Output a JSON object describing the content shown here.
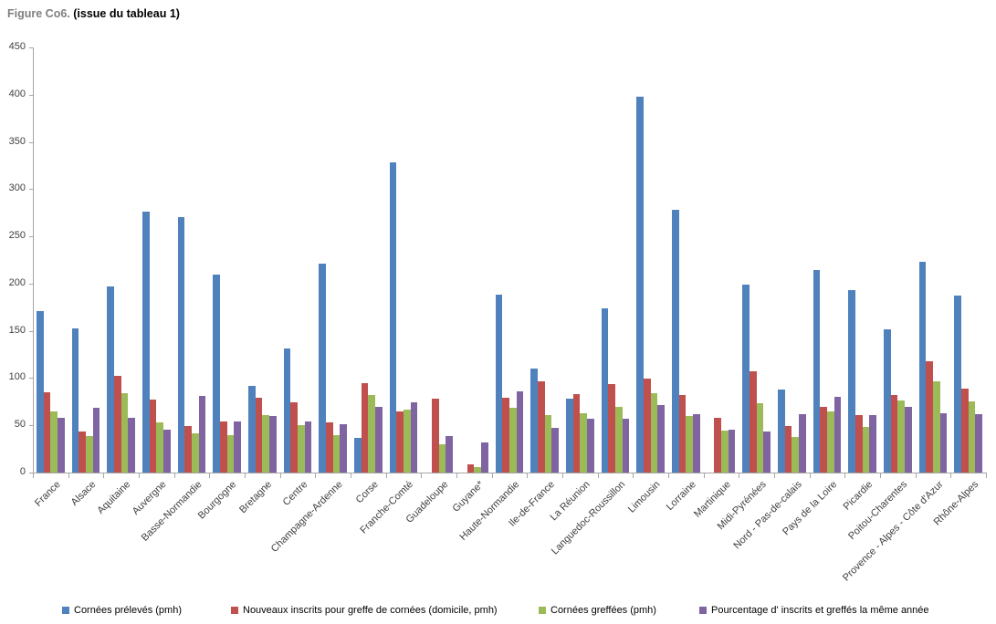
{
  "title": {
    "prefix": "Figure Co6.",
    "suffix": " (issue du tableau 1)"
  },
  "colors": {
    "series_blue": "#4F81BD",
    "series_red": "#C0504D",
    "series_green": "#9BBB59",
    "series_purple": "#8064A2",
    "axis": "#A6A6A6",
    "tick_text": "#404040",
    "title_gray": "#7F7F7F"
  },
  "chart_data": {
    "type": "bar",
    "title": "Figure Co6. (issue du tableau 1)",
    "xlabel": "",
    "ylabel": "",
    "ylim": [
      0,
      450
    ],
    "ytick_step": 50,
    "yticks": [
      0,
      50,
      100,
      150,
      200,
      250,
      300,
      350,
      400,
      450
    ],
    "grid": false,
    "legend_position": "bottom",
    "categories": [
      "France",
      "Alsace",
      "Aquitaine",
      "Auvergne",
      "Basse-Normandie",
      "Bourgogne",
      "Bretagne",
      "Centre",
      "Champagne-Ardenne",
      "Corse",
      "Franche-Comté",
      "Guadeloupe",
      "Guyane*",
      "Haute-Normandie",
      "Ile-de-France",
      "La Réunion",
      "Languedoc-Roussillon",
      "Limousin",
      "Lorraine",
      "Martinique",
      "Midi-Pyrénées",
      "Nord - Pas-de-calais",
      "Pays de la Loire",
      "Picardie",
      "Poitou-Charentes",
      "Provence - Alpes - Côte d'Azur",
      "Rhône-Alpes"
    ],
    "series": [
      {
        "name": "Cornées prélevés (pmh)",
        "color": "#4F81BD",
        "values": [
          171,
          153,
          197,
          276,
          270,
          210,
          92,
          131,
          221,
          37,
          328,
          0,
          0,
          188,
          110,
          78,
          174,
          398,
          278,
          0,
          199,
          88,
          214,
          193,
          152,
          223,
          187
        ]
      },
      {
        "name": "Nouveaux inscrits pour greffe de cornées (domicile, pmh)",
        "color": "#C0504D",
        "values": [
          85,
          43,
          102,
          77,
          49,
          54,
          79,
          74,
          53,
          95,
          65,
          78,
          9,
          79,
          97,
          83,
          94,
          99,
          82,
          58,
          107,
          49,
          70,
          61,
          82,
          118,
          89
        ]
      },
      {
        "name": "Cornées greffées (pmh)",
        "color": "#9BBB59",
        "values": [
          65,
          39,
          84,
          53,
          42,
          40,
          61,
          50,
          40,
          82,
          67,
          30,
          6,
          69,
          61,
          63,
          70,
          84,
          60,
          44,
          73,
          38,
          65,
          48,
          76,
          97,
          75
        ]
      },
      {
        "name": "Pourcentage d' inscrits et greffés la même année",
        "color": "#8064A2",
        "values": [
          58,
          69,
          58,
          45,
          81,
          54,
          60,
          54,
          51,
          70,
          74,
          39,
          32,
          86,
          47,
          57,
          57,
          71,
          62,
          45,
          43,
          62,
          80,
          61,
          70,
          63,
          62
        ]
      }
    ]
  }
}
